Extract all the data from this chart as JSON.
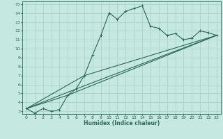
{
  "xlabel": "Humidex (Indice chaleur)",
  "bg_color": "#c5e8e0",
  "grid_color": "#a8cfc8",
  "line_color": "#2a6858",
  "xlim": [
    -0.5,
    23.5
  ],
  "ylim": [
    2.7,
    15.3
  ],
  "xticks": [
    0,
    1,
    2,
    3,
    4,
    5,
    6,
    7,
    8,
    9,
    10,
    11,
    12,
    13,
    14,
    15,
    16,
    17,
    18,
    19,
    20,
    21,
    22,
    23
  ],
  "yticks": [
    3,
    4,
    5,
    6,
    7,
    8,
    9,
    10,
    11,
    12,
    13,
    14,
    15
  ],
  "main_series": {
    "x": [
      0,
      1,
      2,
      3,
      4,
      5,
      6,
      7,
      8,
      9,
      10,
      11,
      12,
      13,
      14,
      15,
      16,
      17,
      18,
      19,
      20,
      21,
      22,
      23
    ],
    "y": [
      3.3,
      2.8,
      3.3,
      3.0,
      3.2,
      4.8,
      5.5,
      7.0,
      9.3,
      11.5,
      14.0,
      13.3,
      14.2,
      14.5,
      14.8,
      12.5,
      12.3,
      11.5,
      11.7,
      11.0,
      11.2,
      12.0,
      11.8,
      11.5
    ]
  },
  "straight_lines": [
    {
      "x": [
        0,
        23
      ],
      "y": [
        3.3,
        11.5
      ]
    },
    {
      "x": [
        0,
        23
      ],
      "y": [
        3.3,
        11.5
      ]
    },
    {
      "x": [
        0,
        23
      ],
      "y": [
        3.3,
        11.5
      ]
    }
  ],
  "fan_lines": [
    {
      "x": [
        0,
        5,
        23
      ],
      "y": [
        3.3,
        4.8,
        11.5
      ]
    },
    {
      "x": [
        0,
        6,
        23
      ],
      "y": [
        3.3,
        5.5,
        11.5
      ]
    },
    {
      "x": [
        0,
        7,
        23
      ],
      "y": [
        3.3,
        7.0,
        11.5
      ]
    }
  ]
}
